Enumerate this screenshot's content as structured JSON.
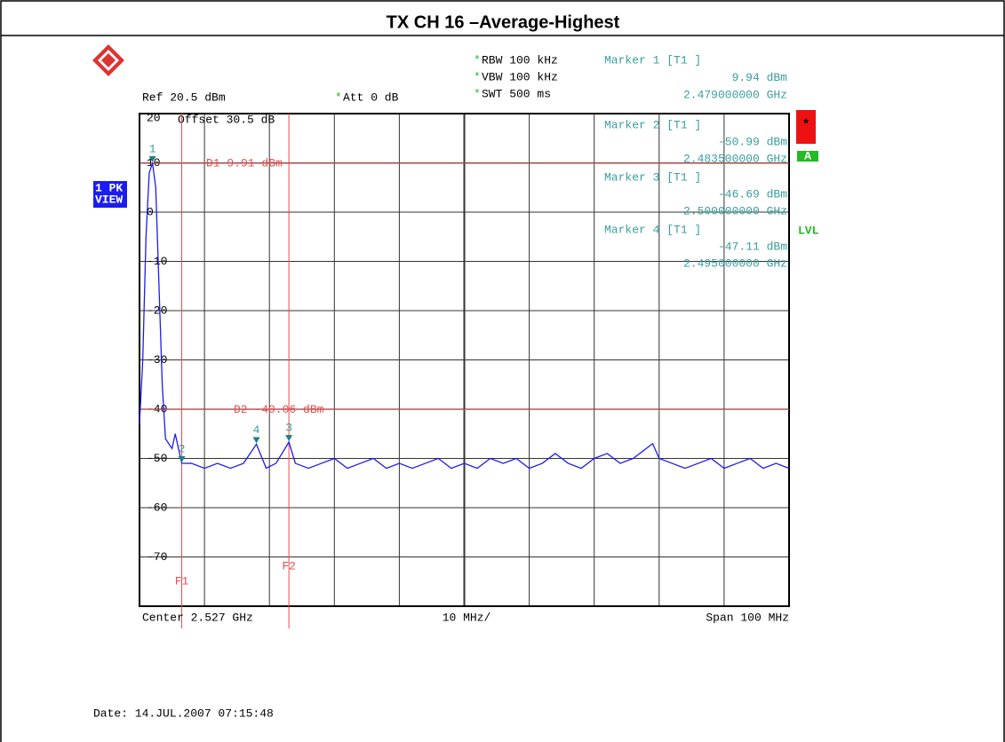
{
  "title": "TX CH 16 –Average-Highest",
  "header": {
    "ref": "Ref  20.5 dBm",
    "att": "Att  0 dB",
    "flag": "*",
    "settings": [
      "RBW 100 kHz",
      "VBW 100 kHz",
      "SWT 500 ms"
    ],
    "offset": "Offset  30.5 dB",
    "trace_box": [
      "1 PK",
      "VIEW"
    ],
    "star": "★",
    "a_box": "A",
    "lvl": "LVL"
  },
  "footer": {
    "center": "Center 2.527 GHz",
    "div": "10 MHz/",
    "span": "Span 100 MHz",
    "date": "Date: 14.JUL.2007  07:15:48"
  },
  "chart_data": {
    "type": "line",
    "x": [
      2.477,
      2.4775,
      2.478,
      2.4785,
      2.479,
      2.4795,
      2.48,
      2.4805,
      2.481,
      2.482,
      2.4825,
      2.4835,
      2.485,
      2.487,
      2.489,
      2.491,
      2.493,
      2.495,
      2.4965,
      2.498,
      2.5,
      2.501,
      2.503,
      2.505,
      2.507,
      2.509,
      2.511,
      2.513,
      2.515,
      2.517,
      2.519,
      2.521,
      2.523,
      2.525,
      2.527,
      2.529,
      2.531,
      2.533,
      2.535,
      2.537,
      2.539,
      2.541,
      2.543,
      2.545,
      2.547,
      2.549,
      2.551,
      2.553,
      2.555,
      2.556,
      2.557,
      2.559,
      2.561,
      2.563,
      2.565,
      2.567,
      2.569,
      2.571,
      2.573,
      2.575,
      2.577
    ],
    "series": [
      {
        "color": "#1c1cf0",
        "values": [
          -43,
          -30,
          -5,
          8,
          9.94,
          5,
          -15,
          -35,
          -46,
          -48,
          -45,
          -50.99,
          -51,
          -52,
          -51,
          -52,
          -51,
          -47.11,
          -52,
          -51,
          -46.69,
          -51,
          -52,
          -51,
          -50,
          -52,
          -51,
          -50,
          -52,
          -51,
          -52,
          -51,
          -50,
          -52,
          -51,
          -52,
          -50,
          -51,
          -50,
          -52,
          -51,
          -49,
          -51,
          -52,
          -50,
          -49,
          -51,
          -50,
          -48,
          -47,
          -50,
          -51,
          -52,
          -51,
          -50,
          -52,
          -51,
          -50,
          -52,
          -51,
          -52
        ]
      }
    ],
    "xlim": [
      2.477,
      2.577
    ],
    "xticks": [
      2.477,
      2.487,
      2.497,
      2.507,
      2.517,
      2.527,
      2.537,
      2.547,
      2.557,
      2.567,
      2.577
    ],
    "ylim": [
      -80,
      20
    ],
    "yticks": [
      -70,
      -60,
      -50,
      -40,
      -30,
      -20,
      -10,
      0,
      10,
      20
    ],
    "grid": true,
    "markers": [
      {
        "name": "Marker 1 [T1 ]",
        "symbol": "1",
        "x": 2.479,
        "x_label": "2.479000000 GHz",
        "value": 9.94,
        "value_label": "9.94 dBm"
      },
      {
        "name": "Marker 2 [T1 ]",
        "symbol": "2",
        "x": 2.4835,
        "x_label": "2.483500000 GHz",
        "value": -50.99,
        "value_label": "-50.99 dBm"
      },
      {
        "name": "Marker 3 [T1 ]",
        "symbol": "3",
        "x": 2.5,
        "x_label": "2.500000000 GHz",
        "value": -46.69,
        "value_label": "-46.69 dBm"
      },
      {
        "name": "Marker 4 [T1 ]",
        "symbol": "4",
        "x": 2.495,
        "x_label": "2.495000000 GHz",
        "value": -47.11,
        "value_label": "-47.11 dBm"
      }
    ],
    "display_lines": [
      {
        "label": "D1 9.91 dBm",
        "value": 9.91
      },
      {
        "label": "D2 -40.06 dBm",
        "value": -40.06
      }
    ],
    "frequency_lines": [
      {
        "label": "F1",
        "value": 2.4835
      },
      {
        "label": "F2",
        "value": 2.5
      }
    ]
  }
}
